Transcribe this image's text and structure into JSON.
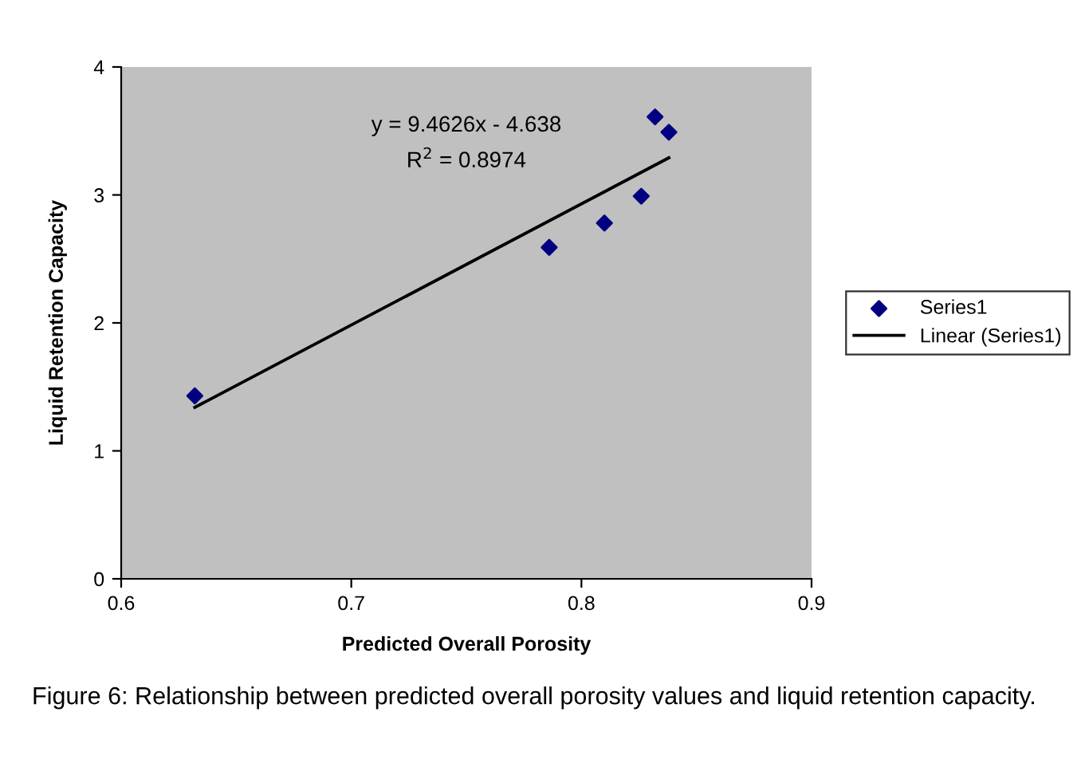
{
  "chart_data": {
    "type": "scatter",
    "xlabel": "Predicted Overall Porosity",
    "ylabel": "Liquid Retention Capacity",
    "xlim": [
      0.6,
      0.9
    ],
    "xticks": [
      0.6,
      0.7,
      0.8,
      0.9
    ],
    "ylim": [
      0,
      4
    ],
    "yticks": [
      0,
      1,
      2,
      3,
      4
    ],
    "grid": false,
    "legend": "right",
    "series": [
      {
        "name": "Series1",
        "marker": "diamond",
        "color": "#000080",
        "x": [
          0.632,
          0.786,
          0.81,
          0.826,
          0.832,
          0.838
        ],
        "values": [
          1.43,
          2.59,
          2.78,
          2.99,
          3.61,
          3.49
        ]
      },
      {
        "name": "Linear (Series1)",
        "type": "line",
        "color": "#000000",
        "x": [
          0.632,
          0.838
        ],
        "values": [
          1.34,
          3.29
        ]
      }
    ],
    "annotations": [
      "y = 9.4626x - 4.638",
      "R$^{2}$ = 0.8974",
      "Figure 6: Relationship between predicted overall porosity values and liquid retention capacity."
    ]
  }
}
